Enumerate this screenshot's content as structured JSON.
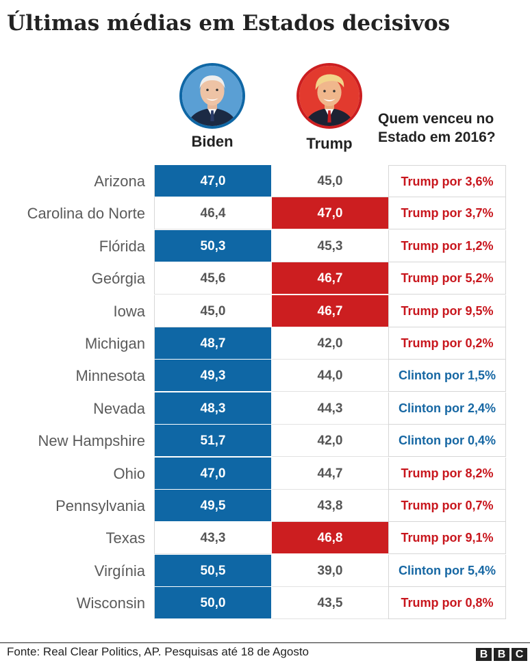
{
  "title": "Últimas médias em Estados decisivos",
  "headers": {
    "biden": "Biden",
    "trump": "Trump",
    "question_line1": "Quem venceu no",
    "question_line2": "Estado em 2016?"
  },
  "colors": {
    "biden": "#0f67a5",
    "trump": "#cc1e20",
    "clinton_text": "#1667a3",
    "trump_text": "#c8161d"
  },
  "chart_data": {
    "type": "table",
    "title": "Últimas médias em Estados decisivos",
    "columns": [
      "Biden",
      "Trump",
      "Quem venceu no Estado em 2016?"
    ],
    "rows": [
      {
        "state": "Arizona",
        "biden": "47,0",
        "trump": "45,0",
        "leader": "biden",
        "winner2016": "Trump por 3,6%",
        "winner_party": "trump"
      },
      {
        "state": "Carolina do Norte",
        "biden": "46,4",
        "trump": "47,0",
        "leader": "trump",
        "winner2016": "Trump por 3,7%",
        "winner_party": "trump"
      },
      {
        "state": "Flórida",
        "biden": "50,3",
        "trump": "45,3",
        "leader": "biden",
        "winner2016": "Trump por 1,2%",
        "winner_party": "trump"
      },
      {
        "state": "Geórgia",
        "biden": "45,6",
        "trump": "46,7",
        "leader": "trump",
        "winner2016": "Trump por 5,2%",
        "winner_party": "trump"
      },
      {
        "state": "Iowa",
        "biden": "45,0",
        "trump": "46,7",
        "leader": "trump",
        "winner2016": "Trump por 9,5%",
        "winner_party": "trump"
      },
      {
        "state": "Michigan",
        "biden": "48,7",
        "trump": "42,0",
        "leader": "biden",
        "winner2016": "Trump por 0,2%",
        "winner_party": "trump"
      },
      {
        "state": "Minnesota",
        "biden": "49,3",
        "trump": "44,0",
        "leader": "biden",
        "winner2016": "Clinton por 1,5%",
        "winner_party": "clinton"
      },
      {
        "state": "Nevada",
        "biden": "48,3",
        "trump": "44,3",
        "leader": "biden",
        "winner2016": "Clinton por 2,4%",
        "winner_party": "clinton"
      },
      {
        "state": "New Hampshire",
        "biden": "51,7",
        "trump": "42,0",
        "leader": "biden",
        "winner2016": "Clinton por 0,4%",
        "winner_party": "clinton"
      },
      {
        "state": "Ohio",
        "biden": "47,0",
        "trump": "44,7",
        "leader": "biden",
        "winner2016": "Trump por 8,2%",
        "winner_party": "trump"
      },
      {
        "state": "Pennsylvania",
        "biden": "49,5",
        "trump": "43,8",
        "leader": "biden",
        "winner2016": "Trump por 0,7%",
        "winner_party": "trump"
      },
      {
        "state": "Texas",
        "biden": "43,3",
        "trump": "46,8",
        "leader": "trump",
        "winner2016": "Trump por 9,1%",
        "winner_party": "trump"
      },
      {
        "state": "Virgínia",
        "biden": "50,5",
        "trump": "39,0",
        "leader": "biden",
        "winner2016": "Clinton por 5,4%",
        "winner_party": "clinton"
      },
      {
        "state": "Wisconsin",
        "biden": "50,0",
        "trump": "43,5",
        "leader": "biden",
        "winner2016": "Trump por 0,8%",
        "winner_party": "trump"
      }
    ]
  },
  "footer": {
    "source": "Fonte: Real Clear Politics, AP. Pesquisas até 18 de Agosto",
    "logo_letters": [
      "B",
      "B",
      "C"
    ]
  }
}
